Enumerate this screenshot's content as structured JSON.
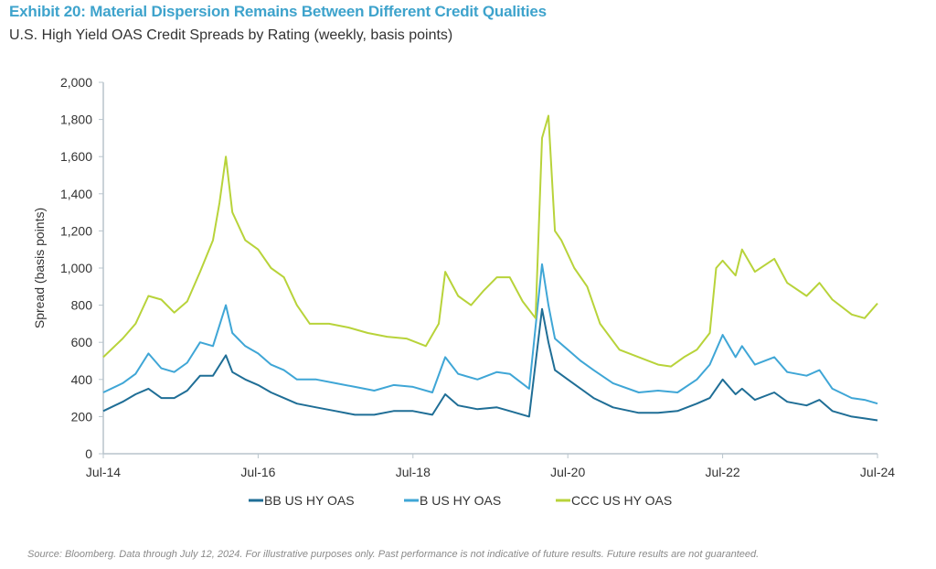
{
  "chart_data": {
    "type": "line",
    "title": "Exhibit 20: Material Dispersion Remains Between Different Credit Qualities",
    "subtitle": "U.S. High Yield OAS Credit Spreads by Rating (weekly, basis points)",
    "xlabel": "",
    "ylabel": "Spread (basis points)",
    "ylim": [
      0,
      2000
    ],
    "yticks": [
      "0",
      "200",
      "400",
      "600",
      "800",
      "1,000",
      "1,200",
      "1,400",
      "1,600",
      "1,800",
      "2,000"
    ],
    "xlim": [
      "2014-07",
      "2024-07"
    ],
    "xticks": [
      "Jul-14",
      "Jul-16",
      "Jul-18",
      "Jul-20",
      "Jul-22",
      "Jul-24"
    ],
    "grid": false,
    "legend_position": "bottom",
    "series": [
      {
        "name": "BB US HY OAS",
        "color": "#1f6e96",
        "points": [
          [
            "2014-07",
            230
          ],
          [
            "2014-10",
            280
          ],
          [
            "2014-12",
            320
          ],
          [
            "2015-02",
            350
          ],
          [
            "2015-04",
            300
          ],
          [
            "2015-06",
            300
          ],
          [
            "2015-08",
            340
          ],
          [
            "2015-10",
            420
          ],
          [
            "2015-12",
            420
          ],
          [
            "2016-02",
            530
          ],
          [
            "2016-03",
            440
          ],
          [
            "2016-05",
            400
          ],
          [
            "2016-07",
            370
          ],
          [
            "2016-09",
            330
          ],
          [
            "2016-11",
            300
          ],
          [
            "2017-01",
            270
          ],
          [
            "2017-04",
            250
          ],
          [
            "2017-07",
            230
          ],
          [
            "2017-10",
            210
          ],
          [
            "2018-01",
            210
          ],
          [
            "2018-04",
            230
          ],
          [
            "2018-07",
            230
          ],
          [
            "2018-10",
            210
          ],
          [
            "2018-12",
            320
          ],
          [
            "2019-02",
            260
          ],
          [
            "2019-05",
            240
          ],
          [
            "2019-08",
            250
          ],
          [
            "2019-10",
            230
          ],
          [
            "2020-01",
            200
          ],
          [
            "2020-03",
            780
          ],
          [
            "2020-04",
            600
          ],
          [
            "2020-05",
            450
          ],
          [
            "2020-07",
            400
          ],
          [
            "2020-09",
            350
          ],
          [
            "2020-11",
            300
          ],
          [
            "2021-02",
            250
          ],
          [
            "2021-06",
            220
          ],
          [
            "2021-09",
            220
          ],
          [
            "2021-12",
            230
          ],
          [
            "2022-03",
            270
          ],
          [
            "2022-05",
            300
          ],
          [
            "2022-07",
            400
          ],
          [
            "2022-09",
            320
          ],
          [
            "2022-10",
            350
          ],
          [
            "2022-12",
            290
          ],
          [
            "2023-03",
            330
          ],
          [
            "2023-05",
            280
          ],
          [
            "2023-08",
            260
          ],
          [
            "2023-10",
            290
          ],
          [
            "2023-12",
            230
          ],
          [
            "2024-03",
            200
          ],
          [
            "2024-05",
            190
          ],
          [
            "2024-07",
            180
          ]
        ]
      },
      {
        "name": "B US HY OAS",
        "color": "#3fa6d6",
        "points": [
          [
            "2014-07",
            330
          ],
          [
            "2014-10",
            380
          ],
          [
            "2014-12",
            430
          ],
          [
            "2015-02",
            540
          ],
          [
            "2015-04",
            460
          ],
          [
            "2015-06",
            440
          ],
          [
            "2015-08",
            490
          ],
          [
            "2015-10",
            600
          ],
          [
            "2015-12",
            580
          ],
          [
            "2016-02",
            800
          ],
          [
            "2016-03",
            650
          ],
          [
            "2016-05",
            580
          ],
          [
            "2016-07",
            540
          ],
          [
            "2016-09",
            480
          ],
          [
            "2016-11",
            450
          ],
          [
            "2017-01",
            400
          ],
          [
            "2017-04",
            400
          ],
          [
            "2017-07",
            380
          ],
          [
            "2017-10",
            360
          ],
          [
            "2018-01",
            340
          ],
          [
            "2018-04",
            370
          ],
          [
            "2018-07",
            360
          ],
          [
            "2018-10",
            330
          ],
          [
            "2018-12",
            520
          ],
          [
            "2019-02",
            430
          ],
          [
            "2019-05",
            400
          ],
          [
            "2019-08",
            440
          ],
          [
            "2019-10",
            430
          ],
          [
            "2020-01",
            350
          ],
          [
            "2020-03",
            1020
          ],
          [
            "2020-04",
            800
          ],
          [
            "2020-05",
            620
          ],
          [
            "2020-07",
            560
          ],
          [
            "2020-09",
            500
          ],
          [
            "2020-11",
            450
          ],
          [
            "2021-02",
            380
          ],
          [
            "2021-06",
            330
          ],
          [
            "2021-09",
            340
          ],
          [
            "2021-12",
            330
          ],
          [
            "2022-03",
            400
          ],
          [
            "2022-05",
            480
          ],
          [
            "2022-07",
            640
          ],
          [
            "2022-09",
            520
          ],
          [
            "2022-10",
            580
          ],
          [
            "2022-12",
            480
          ],
          [
            "2023-03",
            520
          ],
          [
            "2023-05",
            440
          ],
          [
            "2023-08",
            420
          ],
          [
            "2023-10",
            450
          ],
          [
            "2023-12",
            350
          ],
          [
            "2024-03",
            300
          ],
          [
            "2024-05",
            290
          ],
          [
            "2024-07",
            270
          ]
        ]
      },
      {
        "name": "CCC US HY OAS",
        "color": "#b8d33a",
        "points": [
          [
            "2014-07",
            520
          ],
          [
            "2014-10",
            620
          ],
          [
            "2014-12",
            700
          ],
          [
            "2015-02",
            850
          ],
          [
            "2015-04",
            830
          ],
          [
            "2015-06",
            760
          ],
          [
            "2015-08",
            820
          ],
          [
            "2015-10",
            980
          ],
          [
            "2015-12",
            1150
          ],
          [
            "2016-01",
            1350
          ],
          [
            "2016-02",
            1600
          ],
          [
            "2016-03",
            1300
          ],
          [
            "2016-05",
            1150
          ],
          [
            "2016-07",
            1100
          ],
          [
            "2016-09",
            1000
          ],
          [
            "2016-11",
            950
          ],
          [
            "2017-01",
            800
          ],
          [
            "2017-03",
            700
          ],
          [
            "2017-06",
            700
          ],
          [
            "2017-09",
            680
          ],
          [
            "2017-12",
            650
          ],
          [
            "2018-03",
            630
          ],
          [
            "2018-06",
            620
          ],
          [
            "2018-09",
            580
          ],
          [
            "2018-11",
            700
          ],
          [
            "2018-12",
            980
          ],
          [
            "2019-02",
            850
          ],
          [
            "2019-04",
            800
          ],
          [
            "2019-06",
            880
          ],
          [
            "2019-08",
            950
          ],
          [
            "2019-10",
            950
          ],
          [
            "2019-12",
            820
          ],
          [
            "2020-02",
            730
          ],
          [
            "2020-03",
            1700
          ],
          [
            "2020-04",
            1820
          ],
          [
            "2020-05",
            1200
          ],
          [
            "2020-06",
            1150
          ],
          [
            "2020-08",
            1000
          ],
          [
            "2020-10",
            900
          ],
          [
            "2020-12",
            700
          ],
          [
            "2021-03",
            560
          ],
          [
            "2021-06",
            520
          ],
          [
            "2021-09",
            480
          ],
          [
            "2021-11",
            470
          ],
          [
            "2022-01",
            520
          ],
          [
            "2022-03",
            560
          ],
          [
            "2022-05",
            650
          ],
          [
            "2022-06",
            1000
          ],
          [
            "2022-07",
            1040
          ],
          [
            "2022-09",
            960
          ],
          [
            "2022-10",
            1100
          ],
          [
            "2022-12",
            980
          ],
          [
            "2023-03",
            1050
          ],
          [
            "2023-05",
            920
          ],
          [
            "2023-08",
            850
          ],
          [
            "2023-10",
            920
          ],
          [
            "2023-12",
            830
          ],
          [
            "2024-03",
            750
          ],
          [
            "2024-05",
            730
          ],
          [
            "2024-07",
            810
          ]
        ]
      }
    ]
  },
  "source": "Source: Bloomberg. Data through July 12, 2024. For illustrative purposes only. Past performance is not indicative of future results. Future results are not guaranteed."
}
